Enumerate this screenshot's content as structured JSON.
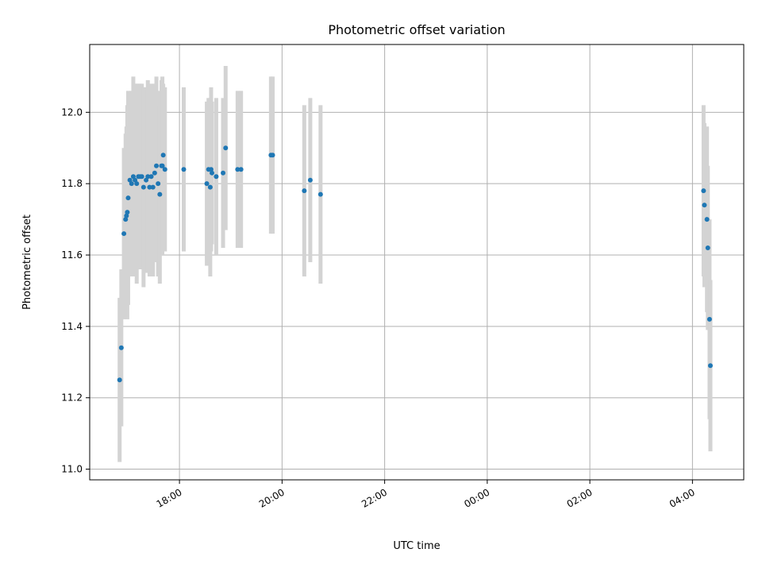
{
  "chart_data": {
    "type": "scatter",
    "title": "Photometric offset variation",
    "xlabel": "UTC time",
    "ylabel": "Photometric offset",
    "x_axis_type": "time",
    "xlim": [
      "2023-01-01T16:15",
      "2023-01-02T05:00"
    ],
    "ylim": [
      10.97,
      12.19
    ],
    "grid": true,
    "x_ticks": [
      "18:00",
      "20:00",
      "22:00",
      "00:00",
      "02:00",
      "04:00"
    ],
    "x_tick_times": [
      "2023-01-01T18:00",
      "2023-01-01T20:00",
      "2023-01-01T22:00",
      "2023-01-02T00:00",
      "2023-01-02T02:00",
      "2023-01-02T04:00"
    ],
    "y_ticks": [
      11.0,
      11.2,
      11.4,
      11.6,
      11.8,
      12.0
    ],
    "y_tick_labels": [
      "11.0",
      "11.2",
      "11.4",
      "11.6",
      "11.8",
      "12.0"
    ],
    "colors": {
      "point": "#1f77b4",
      "errorbar": "#d3d3d3",
      "grid": "#b0b0b0"
    },
    "series": [
      {
        "x": [
          "2023-01-01T16:50",
          "2023-01-01T16:52",
          "2023-01-01T16:55",
          "2023-01-01T16:57",
          "2023-01-01T16:58",
          "2023-01-01T16:59",
          "2023-01-01T17:00",
          "2023-01-01T17:02",
          "2023-01-01T17:04",
          "2023-01-01T17:06",
          "2023-01-01T17:08",
          "2023-01-01T17:10",
          "2023-01-01T17:12",
          "2023-01-01T17:14",
          "2023-01-01T17:16",
          "2023-01-01T17:18",
          "2023-01-01T17:21",
          "2023-01-01T17:23",
          "2023-01-01T17:25",
          "2023-01-01T17:27",
          "2023-01-01T17:29",
          "2023-01-01T17:31",
          "2023-01-01T17:33",
          "2023-01-01T17:35",
          "2023-01-01T17:37",
          "2023-01-01T17:39",
          "2023-01-01T17:40",
          "2023-01-01T17:41",
          "2023-01-01T17:43",
          "2023-01-01T18:05",
          "2023-01-01T18:32",
          "2023-01-01T18:34",
          "2023-01-01T18:36",
          "2023-01-01T18:37",
          "2023-01-01T18:38",
          "2023-01-01T18:43",
          "2023-01-01T18:51",
          "2023-01-01T18:54",
          "2023-01-01T19:08",
          "2023-01-01T19:12",
          "2023-01-01T19:47",
          "2023-01-01T19:49",
          "2023-01-01T20:26",
          "2023-01-01T20:33",
          "2023-01-01T20:45",
          "2023-01-02T04:13",
          "2023-01-02T04:14",
          "2023-01-02T04:17",
          "2023-01-02T04:18",
          "2023-01-02T04:20",
          "2023-01-02T04:21"
        ],
        "y": [
          11.25,
          11.34,
          11.66,
          11.7,
          11.71,
          11.72,
          11.76,
          11.81,
          11.8,
          11.82,
          11.81,
          11.8,
          11.82,
          11.82,
          11.82,
          11.79,
          11.81,
          11.82,
          11.79,
          11.82,
          11.79,
          11.83,
          11.85,
          11.8,
          11.77,
          11.85,
          11.85,
          11.88,
          11.84,
          11.84,
          11.8,
          11.84,
          11.79,
          11.84,
          11.83,
          11.82,
          11.83,
          11.9,
          11.84,
          11.84,
          11.88,
          11.88,
          11.78,
          11.81,
          11.77,
          11.78,
          11.74,
          11.7,
          11.62,
          11.42,
          11.29
        ],
        "yerr": [
          0.23,
          0.22,
          0.24,
          0.24,
          0.25,
          0.3,
          0.3,
          0.22,
          0.26,
          0.28,
          0.27,
          0.28,
          0.26,
          0.26,
          0.26,
          0.28,
          0.26,
          0.27,
          0.25,
          0.26,
          0.25,
          0.25,
          0.25,
          0.26,
          0.25,
          0.24,
          0.25,
          0.2,
          0.23,
          0.23,
          0.23,
          0.2,
          0.25,
          0.23,
          0.2,
          0.22,
          0.21,
          0.23,
          0.22,
          0.22,
          0.22,
          0.22,
          0.24,
          0.23,
          0.25,
          0.24,
          0.23,
          0.26,
          0.23,
          0.28,
          0.24
        ]
      }
    ]
  }
}
